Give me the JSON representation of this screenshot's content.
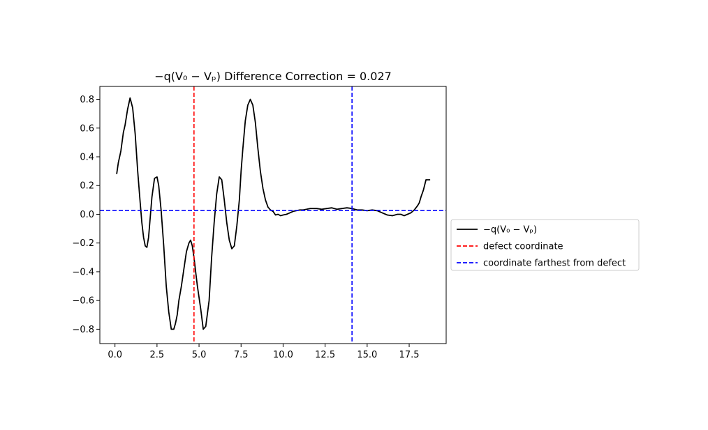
{
  "chart_data": {
    "type": "line",
    "title": "−q(V₀ − Vₚ) Difference Correction = 0.027",
    "xlabel": "",
    "ylabel": "",
    "xlim": [
      -0.9,
      19.7
    ],
    "ylim": [
      -0.9,
      0.89
    ],
    "x_ticks": [
      0.0,
      2.5,
      5.0,
      7.5,
      10.0,
      12.5,
      15.0,
      17.5
    ],
    "x_tick_labels": [
      "0.0",
      "2.5",
      "5.0",
      "7.5",
      "10.0",
      "12.5",
      "15.0",
      "17.5"
    ],
    "y_ticks": [
      -0.8,
      -0.6,
      -0.4,
      -0.2,
      0.0,
      0.2,
      0.4,
      0.6,
      0.8
    ],
    "y_tick_labels": [
      "−0.8",
      "−0.6",
      "−0.4",
      "−0.2",
      "0.0",
      "0.2",
      "0.4",
      "0.6",
      "0.8"
    ],
    "grid": false,
    "legend_placement": "outside-right",
    "series": [
      {
        "name": "−q(V₀ − Vₚ)",
        "color": "#000000",
        "style": "solid",
        "x": [
          0.1,
          0.2,
          0.35,
          0.5,
          0.6,
          0.75,
          0.9,
          1.05,
          1.2,
          1.35,
          1.5,
          1.6,
          1.7,
          1.8,
          1.9,
          2.0,
          2.1,
          2.2,
          2.35,
          2.5,
          2.6,
          2.75,
          2.9,
          3.05,
          3.2,
          3.35,
          3.5,
          3.6,
          3.7,
          3.8,
          3.95,
          4.1,
          4.25,
          4.4,
          4.5,
          4.6,
          4.7,
          4.8,
          4.9,
          5.0,
          5.1,
          5.25,
          5.4,
          5.6,
          5.75,
          5.9,
          6.05,
          6.2,
          6.35,
          6.5,
          6.65,
          6.8,
          6.95,
          7.1,
          7.25,
          7.4,
          7.5,
          7.6,
          7.75,
          7.9,
          8.05,
          8.2,
          8.35,
          8.5,
          8.65,
          8.8,
          8.95,
          9.1,
          9.25,
          9.4,
          9.55,
          9.7,
          9.85,
          10.0,
          10.2,
          10.4,
          10.6,
          10.8,
          11.0,
          11.2,
          11.4,
          11.6,
          11.8,
          12.0,
          12.3,
          12.6,
          12.9,
          13.2,
          13.5,
          13.8,
          14.1,
          14.4,
          14.7,
          15.0,
          15.3,
          15.6,
          15.9,
          16.2,
          16.5,
          16.8,
          17.0,
          17.2,
          17.4,
          17.6,
          17.8,
          18.0,
          18.1,
          18.2,
          18.35,
          18.5,
          18.6,
          18.75
        ],
        "y": [
          0.28,
          0.36,
          0.44,
          0.57,
          0.62,
          0.73,
          0.81,
          0.74,
          0.56,
          0.3,
          0.08,
          -0.06,
          -0.16,
          -0.22,
          -0.23,
          -0.16,
          -0.02,
          0.12,
          0.25,
          0.26,
          0.2,
          0.02,
          -0.22,
          -0.5,
          -0.68,
          -0.8,
          -0.8,
          -0.76,
          -0.7,
          -0.6,
          -0.5,
          -0.38,
          -0.26,
          -0.2,
          -0.18,
          -0.22,
          -0.3,
          -0.4,
          -0.5,
          -0.58,
          -0.66,
          -0.8,
          -0.78,
          -0.6,
          -0.3,
          -0.06,
          0.14,
          0.26,
          0.24,
          0.1,
          -0.06,
          -0.18,
          -0.24,
          -0.22,
          -0.08,
          0.1,
          0.3,
          0.45,
          0.65,
          0.76,
          0.8,
          0.76,
          0.64,
          0.46,
          0.3,
          0.18,
          0.1,
          0.05,
          0.03,
          0.02,
          -0.005,
          0.0,
          -0.01,
          -0.005,
          0.0,
          0.01,
          0.02,
          0.025,
          0.03,
          0.03,
          0.035,
          0.04,
          0.04,
          0.04,
          0.035,
          0.04,
          0.045,
          0.035,
          0.04,
          0.045,
          0.04,
          0.03,
          0.03,
          0.025,
          0.03,
          0.025,
          0.01,
          -0.005,
          -0.01,
          0.0,
          0.0,
          -0.01,
          0.0,
          0.01,
          0.03,
          0.06,
          0.08,
          0.12,
          0.17,
          0.24,
          0.24,
          0.24
        ]
      },
      {
        "name": "defect coordinate",
        "color": "#ff0000",
        "style": "dashed",
        "orientation": "vertical",
        "x": 4.7
      },
      {
        "name": "coordinate farthest from defect",
        "color": "#0000ff",
        "style": "dashed",
        "orientation": "horizontal",
        "y": 0.027
      }
    ],
    "extra_lines": [
      {
        "orientation": "vertical",
        "x": 14.1,
        "color": "#0000ff",
        "style": "dashed"
      }
    ]
  }
}
